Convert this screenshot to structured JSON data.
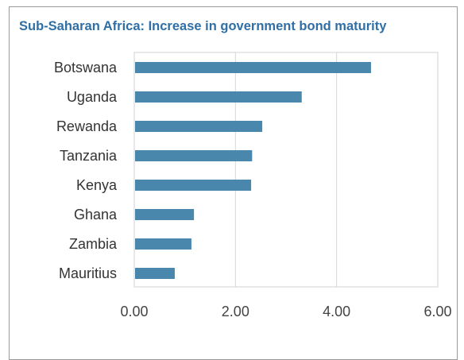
{
  "chart_data": {
    "type": "bar",
    "orientation": "horizontal",
    "title": "Sub-Saharan Africa: Increase in government bond maturity",
    "xlabel": "",
    "ylabel": "",
    "categories": [
      "Botswana",
      "Uganda",
      "Rewanda",
      "Tanzania",
      "Kenya",
      "Ghana",
      "Zambia",
      "Mauritius"
    ],
    "values": [
      4.68,
      3.31,
      2.53,
      2.33,
      2.31,
      1.18,
      1.13,
      0.8
    ],
    "xlim": [
      0,
      6
    ],
    "xticks": [
      "0.00",
      "2.00",
      "4.00",
      "6.00"
    ],
    "grid": true,
    "bar_color": "#4a87ad",
    "title_color": "#2f6fa5"
  }
}
